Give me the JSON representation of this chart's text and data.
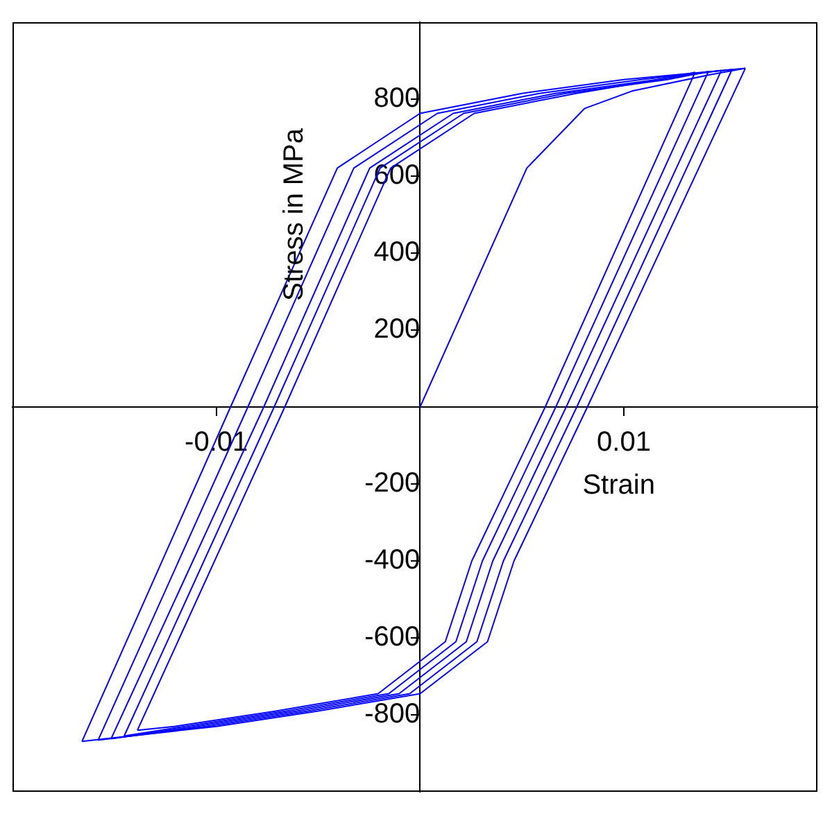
{
  "chart_data": {
    "type": "line",
    "xlabel": "Strain",
    "ylabel": "Stress in MPa",
    "xlim": [
      -0.02,
      0.0195
    ],
    "ylim": [
      -1000,
      1000
    ],
    "xticks": [
      -0.01,
      0.01
    ],
    "yticks": [
      -800,
      -600,
      -400,
      -200,
      200,
      400,
      600,
      800
    ],
    "marker": "none",
    "line_style": "solid",
    "series": [
      {
        "color": "#0000ff",
        "x": [
          0,
          0.00524,
          0.00808,
          0.0104,
          0.01428,
          0.01596
        ],
        "values": [
          0,
          621,
          776,
          821,
          864,
          880
        ]
      },
      {
        "color": "#0000ff",
        "x": [
          -0.01659,
          -0.01,
          -0.005,
          0.0,
          0.00331,
          0.00461,
          0.00821,
          0.01596
        ],
        "values": [
          -869,
          -830,
          -790,
          -745,
          -610,
          -400,
          0,
          880
        ]
      },
      {
        "color": "#0000ff",
        "x": [
          -0.01659,
          -0.0093,
          -0.00406,
          0.0,
          0.005,
          0.01,
          0.01596
        ],
        "values": [
          -869,
          0,
          621,
          763,
          815,
          851,
          880
        ]
      },
      {
        "color": "#0000ff",
        "x": [
          -0.0158,
          -0.01051,
          -0.00551,
          -0.00051,
          0.00279,
          0.00409,
          0.00769,
          0.01531
        ],
        "values": [
          -866,
          -830,
          -790,
          -745,
          -610,
          -400,
          0,
          877
        ]
      },
      {
        "color": "#0000ff",
        "x": [
          -0.0158,
          -0.00845,
          -0.00325,
          0.00085,
          0.00585,
          0.01085,
          0.01531
        ],
        "values": [
          -866,
          0,
          621,
          763,
          815,
          851,
          877
        ]
      },
      {
        "color": "#0000ff",
        "x": [
          -0.01516,
          -0.01103,
          -0.00603,
          -0.00103,
          0.00227,
          0.00357,
          0.00717,
          0.01479
        ],
        "values": [
          -862,
          -830,
          -790,
          -745,
          -610,
          -400,
          0,
          875
        ]
      },
      {
        "color": "#0000ff",
        "x": [
          -0.01516,
          -0.00767,
          -0.00247,
          0.00163,
          0.00663,
          0.01163,
          0.01479
        ],
        "values": [
          -862,
          0,
          621,
          763,
          815,
          851,
          875
        ]
      },
      {
        "color": "#0000ff",
        "x": [
          -0.01452,
          -0.01154,
          -0.00654,
          -0.00154,
          0.00176,
          0.00306,
          0.00666,
          0.01415
        ],
        "values": [
          -855,
          -830,
          -790,
          -745,
          -610,
          -400,
          0,
          872
        ]
      },
      {
        "color": "#0000ff",
        "x": [
          -0.01452,
          -0.00716,
          -0.00196,
          0.00214,
          0.00714,
          0.01214,
          0.01415
        ],
        "values": [
          -855,
          0,
          621,
          763,
          815,
          851,
          872
        ]
      },
      {
        "color": "#0000ff",
        "x": [
          -0.01387,
          -0.01206,
          -0.00706,
          -0.00206,
          0.00124,
          0.00254,
          0.00614,
          0.0135
        ],
        "values": [
          -840,
          -830,
          -790,
          -745,
          -610,
          -400,
          0,
          870
        ]
      },
      {
        "color": "#0000ff",
        "x": [
          -0.01387,
          -0.00664,
          -0.00144,
          0.00266,
          0.00766,
          0.0125,
          0.0135
        ],
        "values": [
          -840,
          0,
          621,
          763,
          815,
          858,
          870
        ]
      }
    ]
  }
}
